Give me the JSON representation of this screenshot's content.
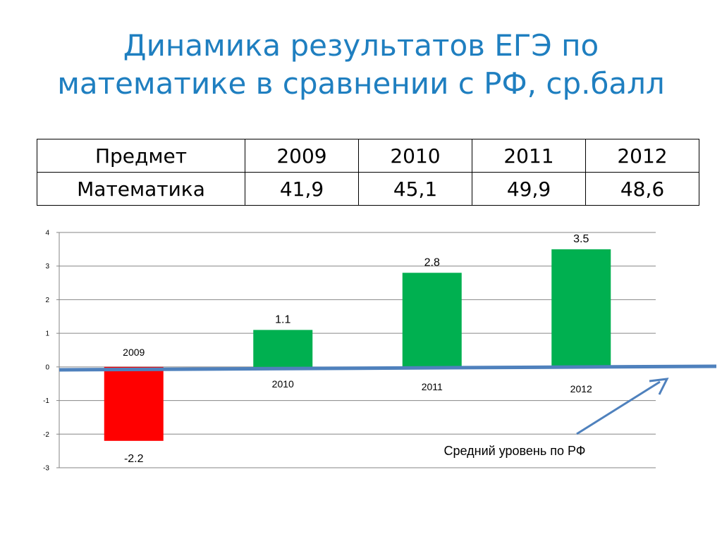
{
  "title": {
    "line1": "Динамика результатов ЕГЭ по",
    "line2": "математике в сравнении с РФ, ср.балл"
  },
  "table": {
    "headers": [
      "Предмет",
      "2009",
      "2010",
      "2011",
      "2012"
    ],
    "row": [
      "Математика",
      "41,9",
      "45,1",
      "49,9",
      "48,6"
    ]
  },
  "chart_data": {
    "type": "bar",
    "categories": [
      "2009",
      "2010",
      "2011",
      "2012"
    ],
    "values": [
      -2.2,
      1.1,
      2.8,
      3.5
    ],
    "data_labels": [
      "-2.2",
      "1.1",
      "2.8",
      "3.5"
    ],
    "yticks": [
      "4",
      "3",
      "2",
      "1",
      "0",
      "-1",
      "-2",
      "-3"
    ],
    "ylim": [
      -3,
      4
    ],
    "grid": true,
    "colors": {
      "positive": "#00b050",
      "negative": "#ff0000",
      "reference_line": "#4f81bd",
      "grid": "#868686"
    },
    "annotation": "Средний уровень по РФ"
  }
}
